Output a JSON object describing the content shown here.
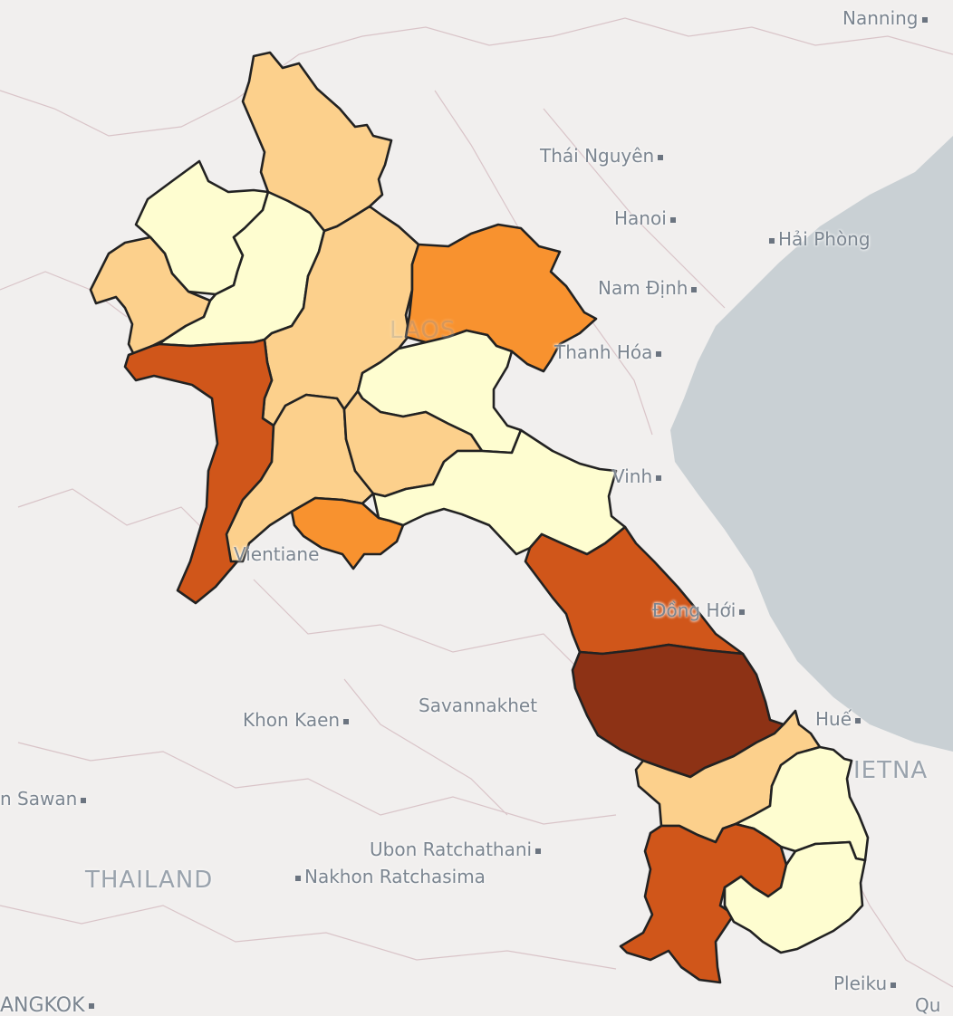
{
  "map": {
    "places": [
      {
        "id": "nanning",
        "label": "Nanning",
        "dot": "after"
      },
      {
        "id": "thai-nguyen",
        "label": "Thái Nguyên",
        "dot": "after"
      },
      {
        "id": "hanoi",
        "label": "Hanoi",
        "dot": "after"
      },
      {
        "id": "hai-phong",
        "label": "Hải Phòng",
        "dot": "before"
      },
      {
        "id": "nam-dinh",
        "label": "Nam Định",
        "dot": "after"
      },
      {
        "id": "thanh-hoa",
        "label": "Thanh Hóa",
        "dot": "after"
      },
      {
        "id": "vinh",
        "label": "Vinh",
        "dot": "after"
      },
      {
        "id": "vientiane",
        "label": "Vientiane",
        "dot": "none"
      },
      {
        "id": "dong-hoi",
        "label": "Đồng Hới",
        "dot": "after"
      },
      {
        "id": "savannakhet",
        "label": "Savannakhet",
        "dot": "none"
      },
      {
        "id": "khon-kaen",
        "label": "Khon Kaen",
        "dot": "after"
      },
      {
        "id": "hue",
        "label": "Huế",
        "dot": "after"
      },
      {
        "id": "nakhon-sawan",
        "label": "n Sawan",
        "dot": "after"
      },
      {
        "id": "ubon",
        "label": "Ubon Ratchathani",
        "dot": "after"
      },
      {
        "id": "nakhon-ratchasima",
        "label": "Nakhon Ratchasima",
        "dot": "before"
      },
      {
        "id": "pleiku",
        "label": "Pleiku",
        "dot": "after"
      },
      {
        "id": "bangkok",
        "label": "ANGKOK",
        "dot": "after"
      },
      {
        "id": "quy",
        "label": "Qu",
        "dot": "none"
      }
    ],
    "countries": [
      {
        "id": "thailand",
        "label": "THAILAND"
      },
      {
        "id": "vietnam",
        "label": "IETNA"
      },
      {
        "id": "laos",
        "label": "LAOS"
      }
    ],
    "colors": {
      "sea": "#c9d0d4",
      "land": "#f1efee",
      "c1": "#fefdd0",
      "c2": "#fcd08c",
      "c3": "#f8922f",
      "c4": "#d0561a",
      "c5": "#8d3215"
    },
    "provinces": [
      {
        "id": "phongsaly",
        "color_class": "c2"
      },
      {
        "id": "luang-namtha",
        "color_class": "c1"
      },
      {
        "id": "oudomxay",
        "color_class": "c1"
      },
      {
        "id": "bokeo",
        "color_class": "c2"
      },
      {
        "id": "luang-prabang",
        "color_class": "c2"
      },
      {
        "id": "houaphanh",
        "color_class": "c3"
      },
      {
        "id": "xayabury",
        "color_class": "c4"
      },
      {
        "id": "xiengkhouang",
        "color_class": "c1"
      },
      {
        "id": "vientiane-province",
        "color_class": "c2"
      },
      {
        "id": "xaisomboun",
        "color_class": "c2"
      },
      {
        "id": "vientiane-capital",
        "color_class": "c3"
      },
      {
        "id": "bolikhamxay",
        "color_class": "c1"
      },
      {
        "id": "khammouane",
        "color_class": "c4"
      },
      {
        "id": "savannakhet-province",
        "color_class": "c5"
      },
      {
        "id": "salavan",
        "color_class": "c2"
      },
      {
        "id": "sekong",
        "color_class": "c1"
      },
      {
        "id": "champasak",
        "color_class": "c4"
      },
      {
        "id": "attapeu",
        "color_class": "c1"
      }
    ]
  }
}
